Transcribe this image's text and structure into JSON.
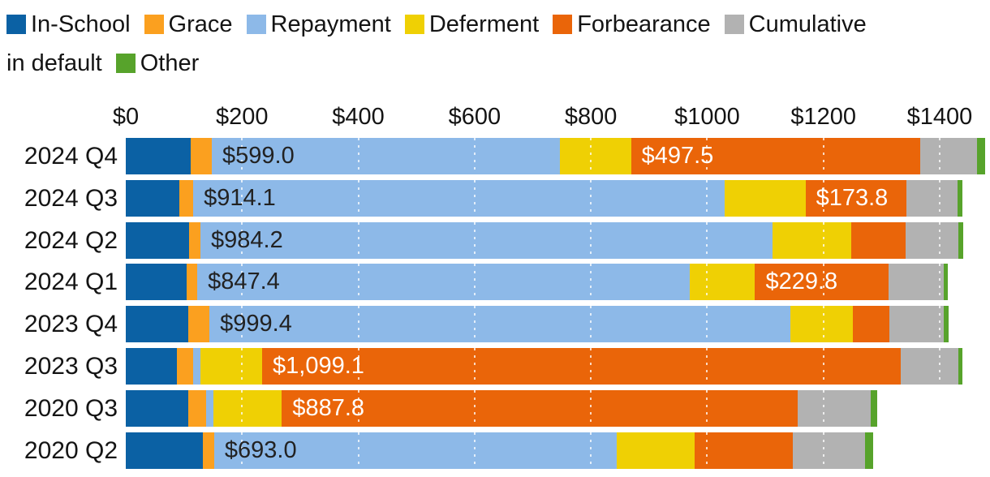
{
  "legend": {
    "line1": [
      {
        "series": "in_school",
        "label": "In-School"
      },
      {
        "series": "grace",
        "label": "Grace"
      },
      {
        "series": "repayment",
        "label": "Repayment"
      },
      {
        "series": "deferment",
        "label": "Deferment"
      },
      {
        "series": "forbearance",
        "label": "Forbearance"
      },
      {
        "series": "cumulative_default",
        "label": "Cumulative"
      }
    ],
    "line2": [
      {
        "series": null,
        "label": "in default"
      },
      {
        "series": "other",
        "label": "Other"
      }
    ]
  },
  "colors": {
    "in_school": "#0b61a4",
    "grace": "#fba01f",
    "repayment": "#8db9e8",
    "deferment": "#efd004",
    "forbearance": "#ea6509",
    "cumulative_default": "#b2b2b2",
    "other": "#57a32b",
    "label_dark": "#222222",
    "label_light": "#ffffff"
  },
  "chart_data": {
    "type": "bar",
    "orientation": "horizontal",
    "stacked": true,
    "unit": "$ billions",
    "categories": [
      "2024 Q4",
      "2024 Q3",
      "2024 Q2",
      "2024 Q1",
      "2023 Q4",
      "2023 Q3",
      "2020 Q3",
      "2020 Q2"
    ],
    "series": [
      {
        "key": "in_school",
        "name": "In-School",
        "values": [
          112,
          92,
          109,
          105,
          107.5,
          88,
          107.5,
          132.5
        ]
      },
      {
        "key": "grace",
        "name": "Grace",
        "values": [
          36,
          24,
          19.5,
          18,
          36.5,
          28.5,
          31,
          19.5
        ]
      },
      {
        "key": "repayment",
        "name": "Repayment",
        "values": [
          599.0,
          914.1,
          984.2,
          847.4,
          999.4,
          12,
          12.5,
          693.0
        ]
      },
      {
        "key": "deferment",
        "name": "Deferment",
        "values": [
          122,
          139,
          135.5,
          112,
          107.5,
          106,
          117.5,
          133
        ]
      },
      {
        "key": "forbearance",
        "name": "Forbearance",
        "values": [
          497.5,
          173.8,
          93.5,
          229.8,
          63,
          1099.1,
          887.8,
          169
        ]
      },
      {
        "key": "cumulative_default",
        "name": "Cumulative in default",
        "values": [
          98,
          88,
          90.5,
          95,
          93.5,
          99,
          125,
          125
        ]
      },
      {
        "key": "other",
        "name": "Other",
        "values": [
          14,
          8.5,
          8.5,
          7,
          8,
          7,
          11.5,
          13
        ]
      }
    ],
    "xlim": [
      0,
      1400
    ],
    "xticks": [
      {
        "value": 0,
        "label": "$0"
      },
      {
        "value": 200,
        "label": "$200"
      },
      {
        "value": 400,
        "label": "$400"
      },
      {
        "value": 600,
        "label": "$600"
      },
      {
        "value": 800,
        "label": "$800"
      },
      {
        "value": 1000,
        "label": "$1000"
      },
      {
        "value": 1200,
        "label": "$1200"
      },
      {
        "value": 1400,
        "label": "$1400"
      }
    ],
    "gridlines": {
      "ticks": [
        200,
        400,
        600,
        800,
        1000,
        1200,
        1400
      ],
      "style": "dotted, white, drawn over bars only"
    },
    "value_labels": [
      {
        "row": "2024 Q4",
        "series": "repayment",
        "text": "$599.0",
        "style": "dark"
      },
      {
        "row": "2024 Q4",
        "series": "forbearance",
        "text": "$497.5",
        "style": "light"
      },
      {
        "row": "2024 Q3",
        "series": "repayment",
        "text": "$914.1",
        "style": "dark"
      },
      {
        "row": "2024 Q3",
        "series": "forbearance",
        "text": "$173.8",
        "style": "light"
      },
      {
        "row": "2024 Q2",
        "series": "repayment",
        "text": "$984.2",
        "style": "dark"
      },
      {
        "row": "2024 Q1",
        "series": "repayment",
        "text": "$847.4",
        "style": "dark"
      },
      {
        "row": "2024 Q1",
        "series": "forbearance",
        "text": "$229.8",
        "style": "light"
      },
      {
        "row": "2023 Q4",
        "series": "repayment",
        "text": "$999.4",
        "style": "dark"
      },
      {
        "row": "2023 Q3",
        "series": "forbearance",
        "text": "$1,099.1",
        "style": "light"
      },
      {
        "row": "2020 Q3",
        "series": "forbearance",
        "text": "$887.8",
        "style": "light"
      },
      {
        "row": "2020 Q2",
        "series": "repayment",
        "text": "$693.0",
        "style": "dark"
      }
    ]
  }
}
